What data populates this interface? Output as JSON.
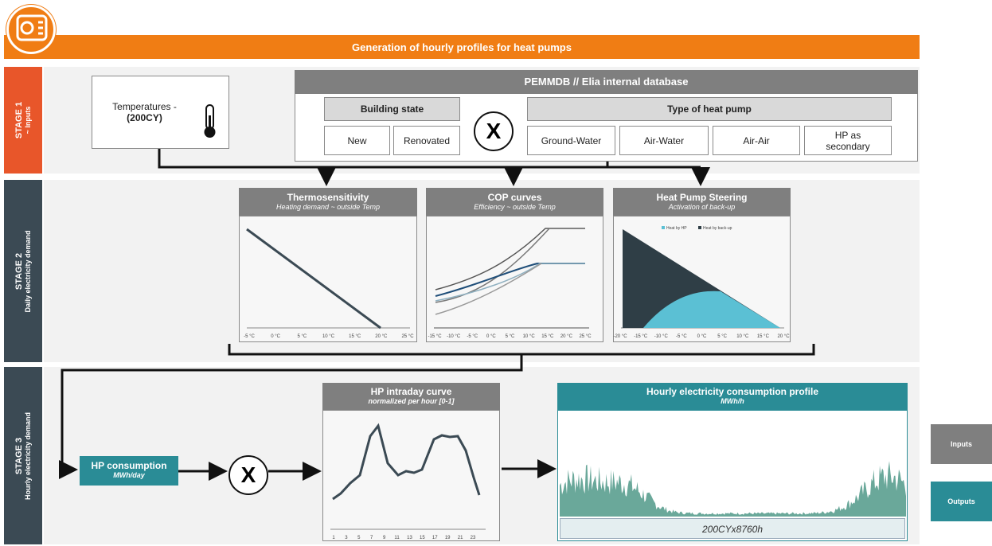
{
  "header": {
    "title": "Generation of hourly profiles for heat pumps"
  },
  "stages": [
    {
      "label": "STAGE 1",
      "subtitle": "~ Inputs"
    },
    {
      "label": "STAGE 2",
      "subtitle": "Daily electricity demand"
    },
    {
      "label": "STAGE 3",
      "subtitle": "Hourly electricity demand"
    }
  ],
  "stage1": {
    "temperatures": {
      "label": "Temperatures -",
      "scenario": "(200CY)"
    },
    "database": {
      "title": "PEMMDB // Elia internal database",
      "building_state": {
        "title": "Building state",
        "options": [
          "New",
          "Renovated"
        ]
      },
      "operator": "X",
      "heat_pump_type": {
        "title": "Type of heat pump",
        "options": [
          "Ground-Water",
          "Air-Water",
          "Air-Air",
          "HP as secondary"
        ]
      }
    }
  },
  "stage2": {
    "panels": [
      {
        "title": "Thermosensitivity",
        "subtitle": "Heating demand ~ outside Temp",
        "axis_labels": [
          "-5 °C",
          "0 °C",
          "5 °C",
          "10 °C",
          "15 °C",
          "20 °C",
          "25 °C"
        ]
      },
      {
        "title": "COP curves",
        "subtitle": "Efficiency ~ outside Temp",
        "axis_labels": [
          "-15 °C",
          "-10 °C",
          "-5 °C",
          "0 °C",
          "5 °C",
          "10 °C",
          "15 °C",
          "20 °C",
          "25 °C"
        ]
      },
      {
        "title": "Heat Pump Steering",
        "subtitle": "Activation of back-up",
        "axis_labels": [
          "-20 °C",
          "-15 °C",
          "-10 °C",
          "-5 °C",
          "0 °C",
          "5 °C",
          "10 °C",
          "15 °C",
          "20 °C"
        ],
        "legend": [
          "Heat by HP",
          "Heat by back-up"
        ]
      }
    ]
  },
  "stage3": {
    "consumption": {
      "title": "HP consumption",
      "unit": "MWh/day"
    },
    "operator": "X",
    "intraday": {
      "title": "HP intraday curve",
      "subtitle": "normalized per hour [0-1]",
      "axis_labels": [
        "1",
        "3",
        "5",
        "7",
        "9",
        "11",
        "13",
        "15",
        "17",
        "19",
        "21",
        "23"
      ]
    },
    "output": {
      "title": "Hourly electricity consumption profile",
      "unit": "MWh/h",
      "footer": "200CYx8760h"
    }
  },
  "legend": {
    "inputs": "Inputs",
    "outputs": "Outputs"
  }
}
